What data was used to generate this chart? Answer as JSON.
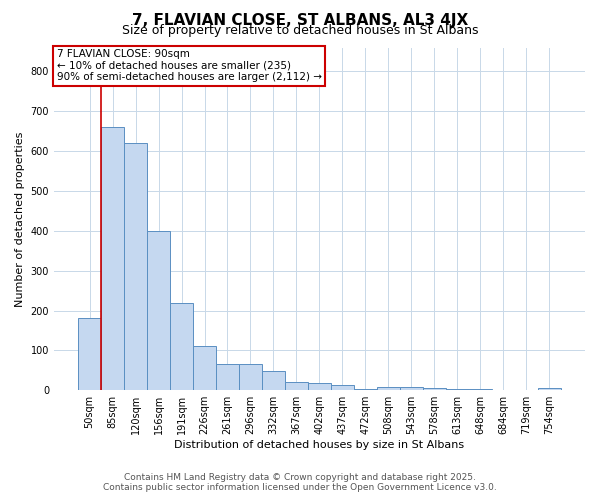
{
  "title": "7, FLAVIAN CLOSE, ST ALBANS, AL3 4JX",
  "subtitle": "Size of property relative to detached houses in St Albans",
  "xlabel": "Distribution of detached houses by size in St Albans",
  "ylabel": "Number of detached properties",
  "categories": [
    "50sqm",
    "85sqm",
    "120sqm",
    "156sqm",
    "191sqm",
    "226sqm",
    "261sqm",
    "296sqm",
    "332sqm",
    "367sqm",
    "402sqm",
    "437sqm",
    "472sqm",
    "508sqm",
    "543sqm",
    "578sqm",
    "613sqm",
    "648sqm",
    "684sqm",
    "719sqm",
    "754sqm"
  ],
  "values": [
    180,
    660,
    620,
    400,
    218,
    112,
    65,
    65,
    47,
    20,
    18,
    14,
    3,
    8,
    7,
    5,
    3,
    2,
    0,
    0,
    5
  ],
  "bar_color": "#c5d8f0",
  "bar_edge_color": "#5a8fc2",
  "vline_color": "#cc0000",
  "vline_x_index": 1,
  "annotation_text": "7 FLAVIAN CLOSE: 90sqm\n← 10% of detached houses are smaller (235)\n90% of semi-detached houses are larger (2,112) →",
  "annotation_box_color": "#ffffff",
  "annotation_box_edge": "#cc0000",
  "ylim": [
    0,
    860
  ],
  "yticks": [
    0,
    100,
    200,
    300,
    400,
    500,
    600,
    700,
    800
  ],
  "footer_line1": "Contains HM Land Registry data © Crown copyright and database right 2025.",
  "footer_line2": "Contains public sector information licensed under the Open Government Licence v3.0.",
  "bg_color": "#ffffff",
  "grid_color": "#c8d8e8",
  "title_fontsize": 11,
  "subtitle_fontsize": 9,
  "xlabel_fontsize": 8,
  "ylabel_fontsize": 8,
  "tick_fontsize": 7,
  "annot_fontsize": 7.5,
  "footer_fontsize": 6.5
}
